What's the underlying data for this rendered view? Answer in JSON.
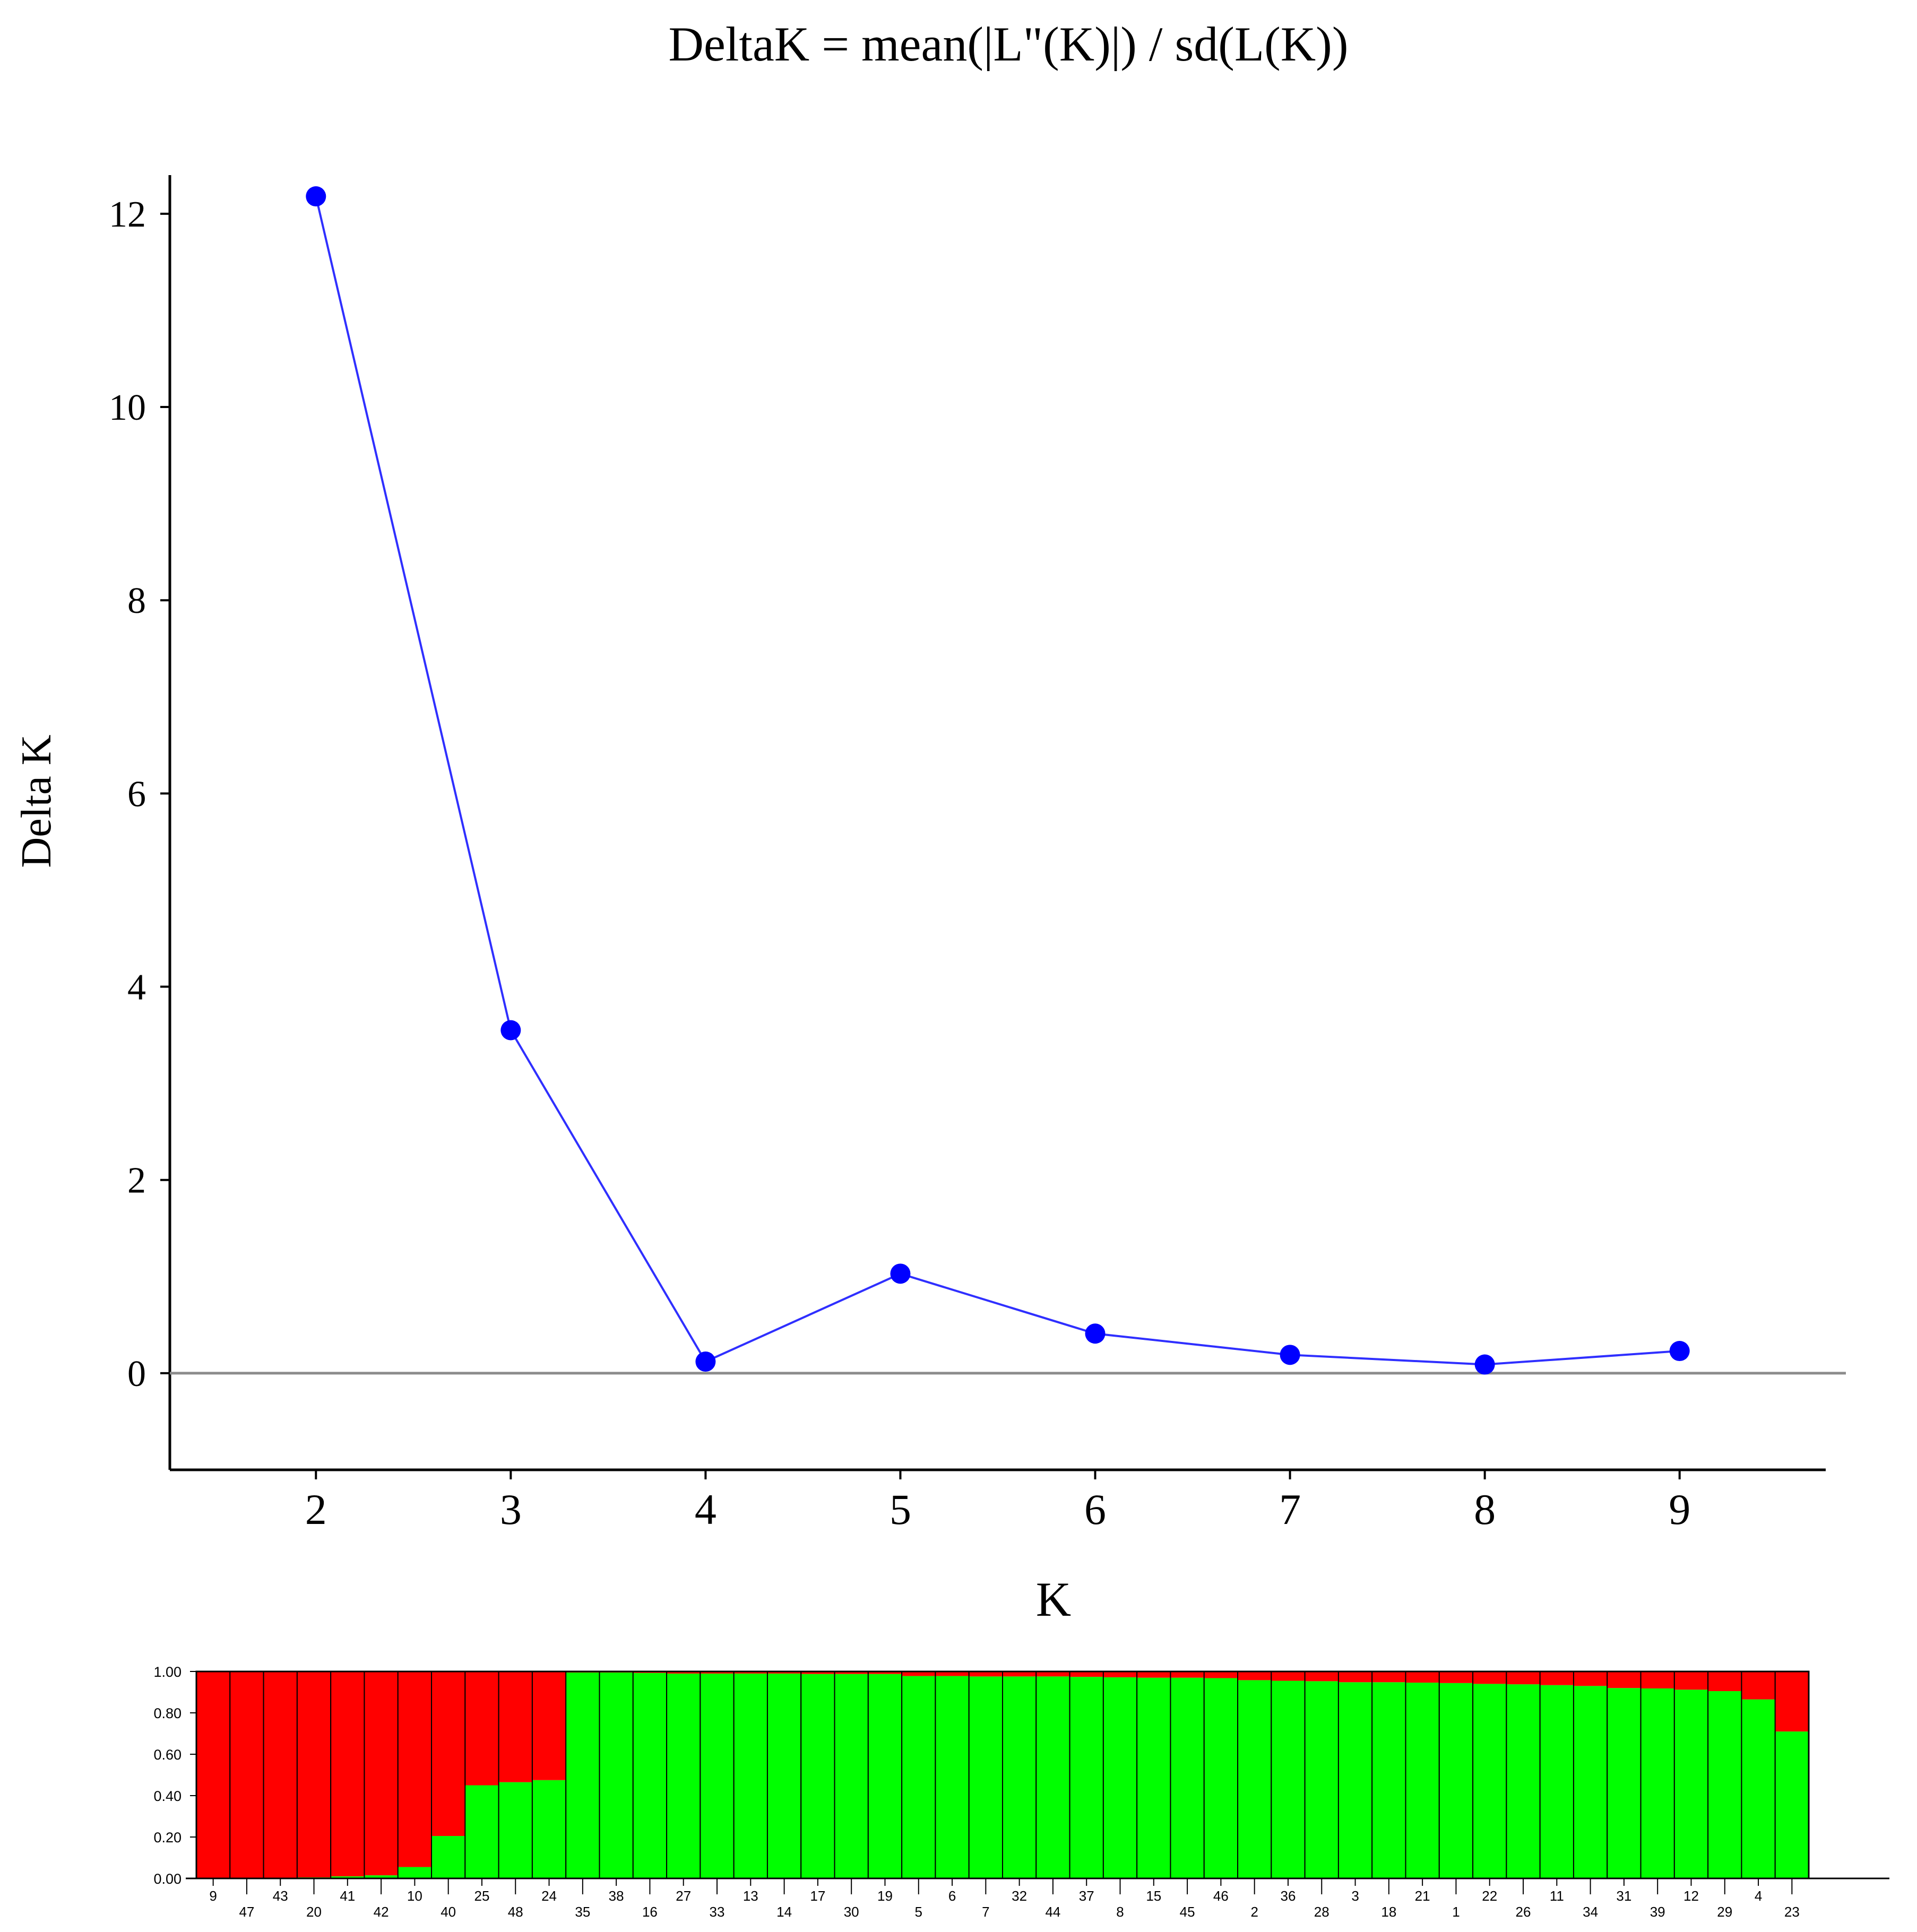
{
  "chart_data": [
    {
      "type": "line",
      "title": "DeltaK = mean(|L\"(K)|) / sd(L(K))",
      "xlabel": "K",
      "ylabel": "Delta K",
      "x": [
        2,
        3,
        4,
        5,
        6,
        7,
        8,
        9
      ],
      "y": [
        12.18,
        3.55,
        0.12,
        1.03,
        0.41,
        0.19,
        0.09,
        0.23
      ],
      "x_ticks": [
        "2",
        "3",
        "4",
        "5",
        "6",
        "7",
        "8",
        "9"
      ],
      "y_ticks": [
        "0",
        "2",
        "4",
        "6",
        "8",
        "10",
        "12"
      ],
      "xlim": [
        1.25,
        9.75
      ],
      "ylim": [
        -1,
        12.4
      ],
      "zero_line": true,
      "grid": false,
      "colors": {
        "line": "#2f2fff",
        "marker": "#0000ff",
        "zero_line": "#8c8c8c",
        "axis": "#000000"
      }
    },
    {
      "type": "bar",
      "stacked": true,
      "categories": [
        "9",
        "47",
        "43",
        "20",
        "41",
        "42",
        "10",
        "40",
        "25",
        "48",
        "24",
        "35",
        "38",
        "16",
        "27",
        "33",
        "13",
        "14",
        "17",
        "30",
        "19",
        "5",
        "6",
        "7",
        "32",
        "44",
        "37",
        "8",
        "15",
        "45",
        "46",
        "2",
        "36",
        "28",
        "3",
        "18",
        "21",
        "1",
        "22",
        "26",
        "11",
        "34",
        "31",
        "39",
        "12",
        "29",
        "4",
        "23"
      ],
      "series": [
        {
          "values": [
            0.0,
            0.0,
            0.0,
            0.005,
            0.01,
            0.015,
            0.055,
            0.205,
            0.45,
            0.465,
            0.475,
            0.995,
            0.995,
            0.993,
            0.99,
            0.99,
            0.99,
            0.99,
            0.988,
            0.988,
            0.988,
            0.978,
            0.978,
            0.976,
            0.976,
            0.976,
            0.974,
            0.972,
            0.97,
            0.97,
            0.968,
            0.958,
            0.955,
            0.953,
            0.948,
            0.948,
            0.946,
            0.944,
            0.94,
            0.938,
            0.934,
            0.93,
            0.92,
            0.918,
            0.912,
            0.905,
            0.865,
            0.71
          ]
        },
        {
          "values": [
            1.0,
            1.0,
            1.0,
            0.995,
            0.99,
            0.985,
            0.945,
            0.795,
            0.55,
            0.535,
            0.525,
            0.005,
            0.005,
            0.007,
            0.01,
            0.01,
            0.01,
            0.01,
            0.012,
            0.012,
            0.012,
            0.022,
            0.022,
            0.024,
            0.024,
            0.024,
            0.026,
            0.028,
            0.03,
            0.03,
            0.032,
            0.042,
            0.045,
            0.047,
            0.052,
            0.052,
            0.054,
            0.056,
            0.06,
            0.062,
            0.066,
            0.07,
            0.08,
            0.082,
            0.088,
            0.095,
            0.135,
            0.29
          ]
        }
      ],
      "y_ticks": [
        "0.00",
        "0.20",
        "0.40",
        "0.60",
        "0.80",
        "1.00"
      ],
      "ylim": [
        0,
        1
      ],
      "colors": {
        "green": "#00ff00",
        "red": "#ff0000",
        "border": "#000000"
      }
    }
  ]
}
